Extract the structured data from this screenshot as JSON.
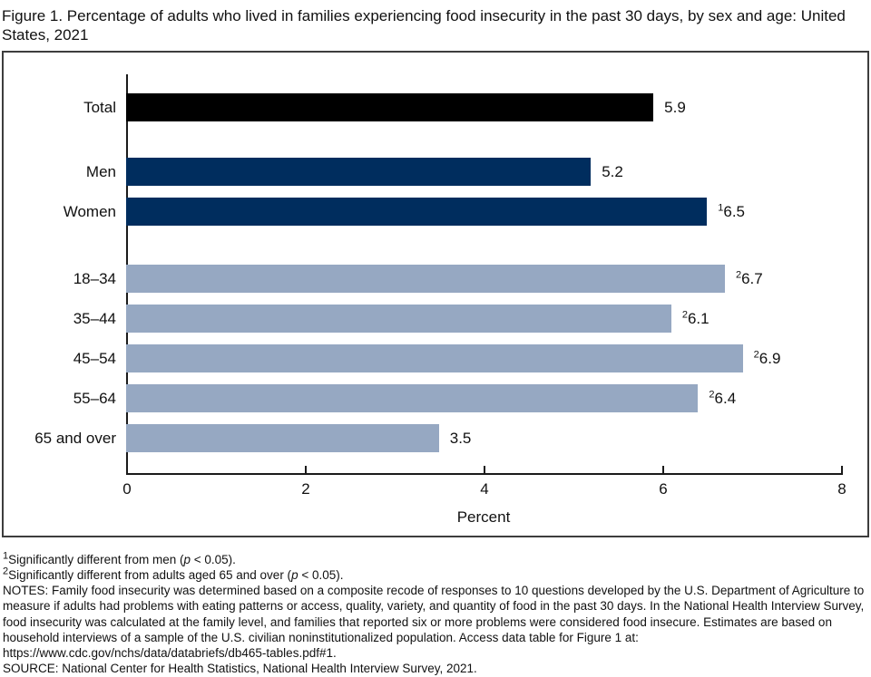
{
  "title": "Figure 1. Percentage of adults who lived in families experiencing food insecurity in the past 30 days, by sex and age: United States, 2021",
  "chart_data": {
    "type": "bar",
    "orientation": "horizontal",
    "title": "Figure 1. Percentage of adults who lived in families experiencing food insecurity in the past 30 days, by sex and age: United States, 2021",
    "categories": [
      "Total",
      "Men",
      "Women",
      "18–34",
      "35–44",
      "45–54",
      "55–64",
      "65 and over"
    ],
    "values": [
      5.9,
      5.2,
      6.5,
      6.7,
      6.1,
      6.9,
      6.4,
      3.5
    ],
    "value_labels": [
      {
        "sup": "",
        "text": "5.9"
      },
      {
        "sup": "",
        "text": "5.2"
      },
      {
        "sup": "1",
        "text": "6.5"
      },
      {
        "sup": "2",
        "text": "6.7"
      },
      {
        "sup": "2",
        "text": "6.1"
      },
      {
        "sup": "2",
        "text": "6.9"
      },
      {
        "sup": "2",
        "text": "6.4"
      },
      {
        "sup": "",
        "text": "3.5"
      }
    ],
    "groups": [
      "total",
      "sex",
      "sex",
      "age",
      "age",
      "age",
      "age",
      "age"
    ],
    "group_colors": {
      "total": "#000000",
      "sex": "#002d5e",
      "age": "#96a8c2"
    },
    "xlabel": "Percent",
    "xlim": [
      0,
      8
    ],
    "xticks": [
      0,
      2,
      4,
      6,
      8
    ],
    "grid": false,
    "legend": false
  },
  "footnotes": [
    {
      "segments": [
        [
          "1",
          "sup"
        ],
        [
          "Significantly different from men (",
          ""
        ],
        [
          "p",
          "i"
        ],
        [
          " < 0.05).",
          ""
        ]
      ]
    },
    {
      "segments": [
        [
          "2",
          "sup"
        ],
        [
          "Significantly different from adults aged 65 and over (",
          ""
        ],
        [
          "p",
          "i"
        ],
        [
          " < 0.05).",
          ""
        ]
      ]
    }
  ],
  "notes": "NOTES: Family food insecurity was determined based on a composite recode of responses to 10 questions developed by the U.S. Department of Agriculture to measure if adults had problems with eating patterns or access, quality, variety, and quantity of food in the past 30 days. In the National Health Interview Survey, food insecurity was calculated at the family level, and families that reported six or more problems were considered food insecure. Estimates are based on household interviews of a sample of the U.S. civilian noninstitutionalized population. Access data table for Figure 1 at: https://www.cdc.gov/nchs/data/databriefs/db465-tables.pdf#1.",
  "source": "SOURCE: National Center for Health Statistics, National Health Interview Survey, 2021."
}
